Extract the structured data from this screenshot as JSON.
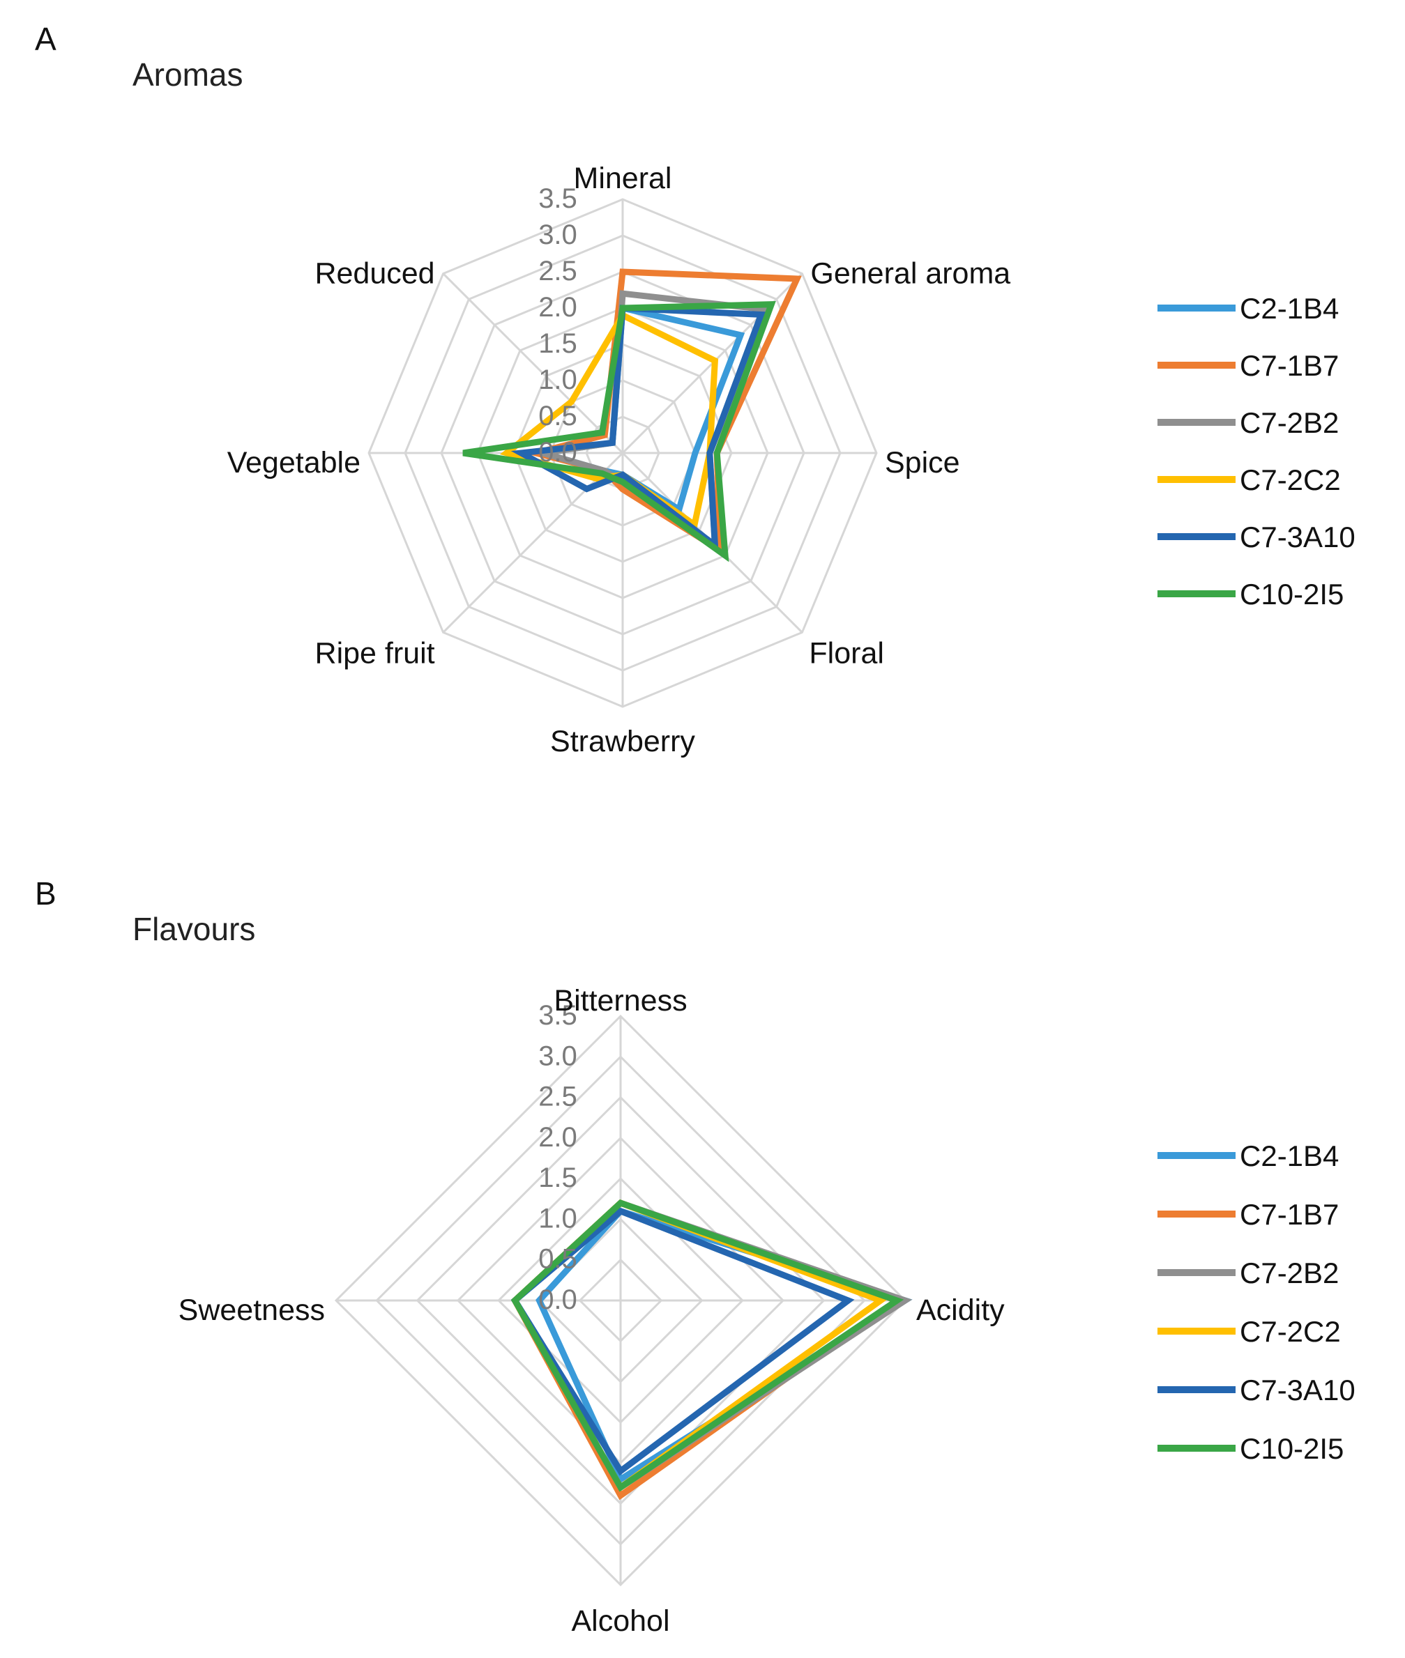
{
  "colors": {
    "C2-1B4": "#3a9ad9",
    "C7-1B7": "#ed7d31",
    "C7-2B2": "#8f8f8f",
    "C7-2C2": "#ffbf00",
    "C7-3A10": "#2466b0",
    "C10-2I5": "#3aa646",
    "grid": "#d6d6d6"
  },
  "chart_data": [
    {
      "type": "radar",
      "panel": "A",
      "title": "Aromas",
      "axes": [
        "Mineral",
        "General aroma",
        "Spice",
        "Floral",
        "Strawberry",
        "Ripe fruit",
        "Vegetable",
        "Reduced"
      ],
      "range": [
        0,
        3.5
      ],
      "ticks": [
        "0.0",
        "0.5",
        "1.0",
        "1.5",
        "2.0",
        "2.5",
        "3.0",
        "3.5"
      ],
      "legend": [
        "C2-1B4",
        "C7-1B7",
        "C7-2B2",
        "C7-2C2",
        "C7-3A10",
        "C10-2I5"
      ],
      "series": [
        {
          "name": "C2-1B4",
          "values": [
            2.0,
            2.3,
            1.0,
            1.1,
            0.3,
            0.35,
            1.1,
            0.2
          ]
        },
        {
          "name": "C7-1B7",
          "values": [
            2.5,
            3.4,
            1.3,
            1.9,
            0.5,
            0.35,
            1.2,
            0.35
          ]
        },
        {
          "name": "C7-2B2",
          "values": [
            2.2,
            2.8,
            1.2,
            1.8,
            0.4,
            0.35,
            1.1,
            0.2
          ]
        },
        {
          "name": "C7-2C2",
          "values": [
            1.9,
            1.8,
            1.2,
            1.4,
            0.3,
            0.5,
            1.6,
            1.0
          ]
        },
        {
          "name": "C7-3A10",
          "values": [
            2.0,
            2.7,
            1.2,
            1.8,
            0.3,
            0.7,
            1.4,
            0.2
          ]
        },
        {
          "name": "C10-2I5",
          "values": [
            2.0,
            2.9,
            1.3,
            2.0,
            0.4,
            0.4,
            2.2,
            0.4
          ]
        }
      ]
    },
    {
      "type": "radar",
      "panel": "B",
      "title": "Flavours",
      "axes": [
        "Bitterness",
        "Acidity",
        "Alcohol",
        "Sweetness"
      ],
      "range": [
        0,
        3.5
      ],
      "ticks": [
        "0.0",
        "0.5",
        "1.0",
        "1.5",
        "2.0",
        "2.5",
        "3.0",
        "3.5"
      ],
      "legend": [
        "C2-1B4",
        "C7-1B7",
        "C7-2B2",
        "C7-2C2",
        "C7-3A10",
        "C10-2I5"
      ],
      "series": [
        {
          "name": "C2-1B4",
          "values": [
            1.1,
            3.5,
            2.2,
            1.0
          ]
        },
        {
          "name": "C7-1B7",
          "values": [
            1.2,
            3.4,
            2.4,
            1.3
          ]
        },
        {
          "name": "C7-2B2",
          "values": [
            1.2,
            3.5,
            2.3,
            1.3
          ]
        },
        {
          "name": "C7-2C2",
          "values": [
            1.2,
            3.2,
            2.3,
            1.3
          ]
        },
        {
          "name": "C7-3A10",
          "values": [
            1.1,
            2.8,
            2.1,
            1.3
          ]
        },
        {
          "name": "C10-2I5",
          "values": [
            1.2,
            3.4,
            2.3,
            1.3
          ]
        }
      ]
    }
  ]
}
